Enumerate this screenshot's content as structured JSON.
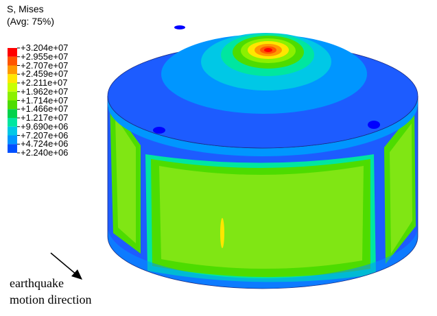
{
  "legend": {
    "title_line1": "S, Mises",
    "title_line2": "(Avg: 75%)",
    "labels": [
      "+3.204e+07",
      "+2.955e+07",
      "+2.707e+07",
      "+2.459e+07",
      "+2.211e+07",
      "+1.962e+07",
      "+1.714e+07",
      "+1.466e+07",
      "+1.217e+07",
      "+9.690e+06",
      "+7.207e+06",
      "+4.724e+06",
      "+2.240e+06"
    ],
    "colors": [
      "#ff0000",
      "#ff5500",
      "#ff9900",
      "#ffe600",
      "#c8ff00",
      "#8cf000",
      "#4ddc00",
      "#00d24b",
      "#00e6a0",
      "#00c8e6",
      "#0096ff",
      "#0050ff",
      "#0000ff"
    ]
  },
  "caption": {
    "line1": "earthquake",
    "line2": "motion direction"
  },
  "model_colors": {
    "top_face": "#1d5cff",
    "side_band": "#8cf000",
    "side_panel": "#80e614",
    "side_edge": "#00e6a0",
    "bottom_band": "#0050ff",
    "hotspot": "#ff0000"
  }
}
